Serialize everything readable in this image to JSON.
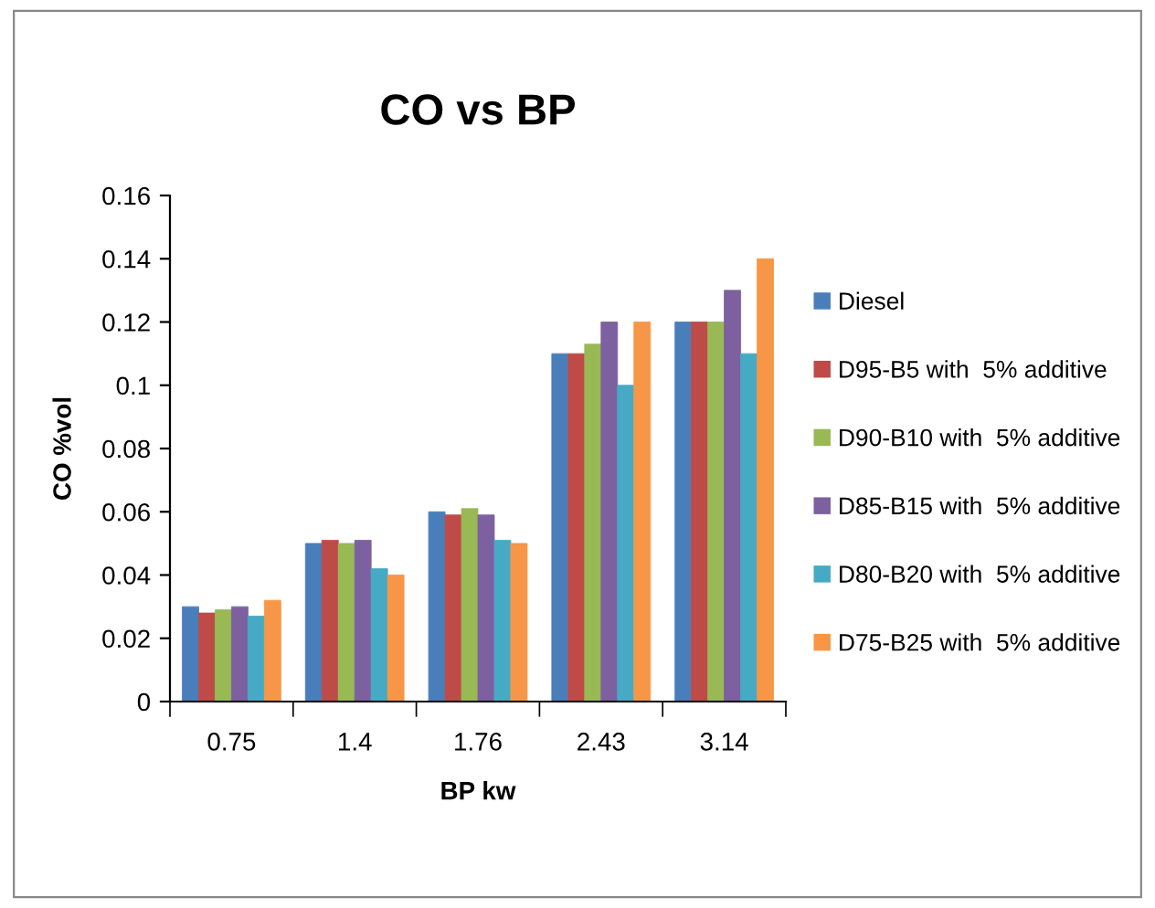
{
  "chart_data": {
    "type": "bar",
    "title": "CO vs BP",
    "xlabel": "BP kw",
    "ylabel": "CO %vol",
    "categories": [
      "0.75",
      "1.4",
      "1.76",
      "2.43",
      "3.14"
    ],
    "series": [
      {
        "name": "Diesel",
        "color": "#4a7ebb",
        "values": [
          0.03,
          0.05,
          0.06,
          0.11,
          0.12
        ]
      },
      {
        "name": "D95-B5 with  5% additive",
        "color": "#be4b48",
        "values": [
          0.028,
          0.051,
          0.059,
          0.11,
          0.12
        ]
      },
      {
        "name": "D90-B10 with  5% additive",
        "color": "#98b954",
        "values": [
          0.029,
          0.05,
          0.061,
          0.113,
          0.12
        ]
      },
      {
        "name": "D85-B15 with  5% additive",
        "color": "#7d60a0",
        "values": [
          0.03,
          0.051,
          0.059,
          0.12,
          0.13
        ]
      },
      {
        "name": "D80-B20 with  5% additive",
        "color": "#46aac5",
        "values": [
          0.027,
          0.042,
          0.051,
          0.1,
          0.11
        ]
      },
      {
        "name": "D75-B25 with  5% additive",
        "color": "#f79646",
        "values": [
          0.032,
          0.04,
          0.05,
          0.12,
          0.14
        ]
      }
    ],
    "ylim": [
      0,
      0.16
    ],
    "yticks": [
      {
        "value": 0,
        "label": "0"
      },
      0.02,
      0.04,
      0.06,
      0.08,
      {
        "value": 0.1,
        "label": "0.1"
      },
      0.12,
      0.14,
      0.16
    ],
    "grid": false,
    "legend": "right"
  }
}
